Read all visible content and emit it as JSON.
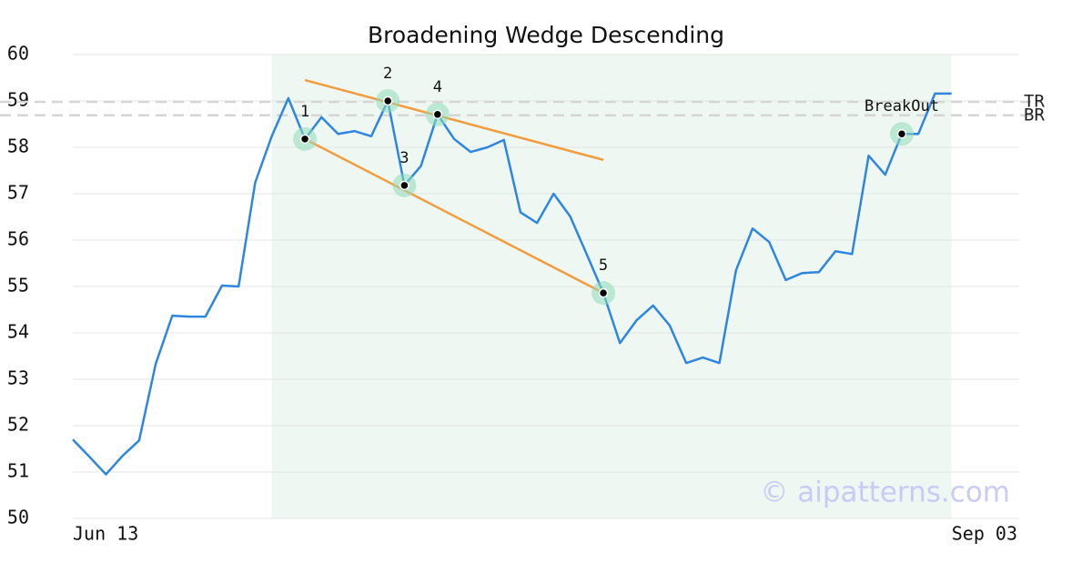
{
  "chart_data": {
    "type": "line",
    "title": "Broadening Wedge Descending",
    "series": [
      {
        "name": "Price",
        "color": "#2e86de",
        "values": [
          51.7,
          51.33,
          50.95,
          51.35,
          51.68,
          53.33,
          54.37,
          54.35,
          54.35,
          55.02,
          55.0,
          57.24,
          58.24,
          59.06,
          58.18,
          58.65,
          58.29,
          58.35,
          58.24,
          59.0,
          57.18,
          57.6,
          58.71,
          58.18,
          57.9,
          58.0,
          58.16,
          56.6,
          56.37,
          57.0,
          56.51,
          55.69,
          54.86,
          53.78,
          54.27,
          54.59,
          54.16,
          53.35,
          53.47,
          53.35,
          55.35,
          56.25,
          55.96,
          55.14,
          55.29,
          55.31,
          55.76,
          55.7,
          57.82,
          57.41,
          58.29,
          58.29,
          59.16,
          59.16
        ]
      }
    ],
    "x_labels": [
      "Jun 13",
      "Sep 03"
    ],
    "ylim": [
      50,
      60
    ],
    "yticks": [
      50,
      51,
      52,
      53,
      54,
      55,
      56,
      57,
      58,
      59,
      60
    ],
    "grid": true,
    "highlight": [
      12,
      53
    ],
    "trendlines": [
      {
        "x": [
          14,
          32
        ],
        "values": [
          59.45,
          57.73
        ],
        "color": "#f39c3d"
      },
      {
        "x": [
          14,
          32
        ],
        "values": [
          58.18,
          54.86
        ],
        "color": "#f39c3d"
      }
    ],
    "levels": [
      {
        "label": "TR",
        "value": 58.98
      },
      {
        "label": "BR",
        "value": 58.69
      }
    ],
    "points": [
      {
        "label": "1",
        "index": 14
      },
      {
        "label": "2",
        "index": 19
      },
      {
        "label": "3",
        "index": 20
      },
      {
        "label": "4",
        "index": 22
      },
      {
        "label": "5",
        "index": 32
      },
      {
        "label": "BreakOut",
        "index": 50
      }
    ],
    "watermark": "© aipatterns.com"
  }
}
